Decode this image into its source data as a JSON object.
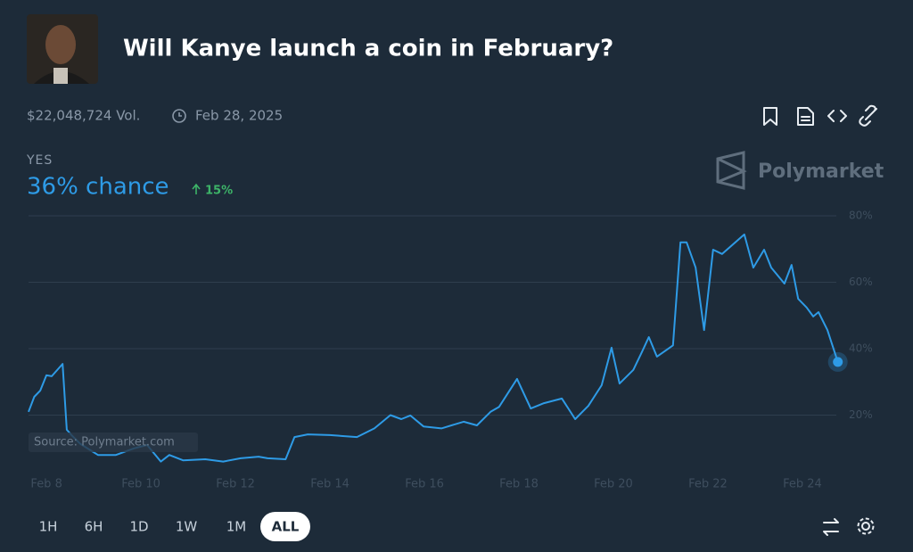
{
  "header": {
    "title": "Will Kanye launch a coin in February?",
    "volume": "$22,048,724 Vol.",
    "end_date": "Feb 28, 2025"
  },
  "outcome": {
    "label": "YES",
    "chance": "36% chance",
    "change": "15%"
  },
  "brand": "Polymarket",
  "source": "Source: Polymarket.com",
  "time_ranges": [
    "1H",
    "6H",
    "1D",
    "1W",
    "1M",
    "ALL"
  ],
  "selected_range": 5,
  "chart_data": {
    "type": "line",
    "color": "#2e9be6",
    "x": [
      7.62,
      7.74,
      7.87,
      8.0,
      8.11,
      8.34,
      8.43,
      8.53,
      8.72,
      9.09,
      9.47,
      9.85,
      10.13,
      10.42,
      10.6,
      10.89,
      11.36,
      11.74,
      12.11,
      12.49,
      12.68,
      13.06,
      13.25,
      13.53,
      14.0,
      14.57,
      14.94,
      15.28,
      15.51,
      15.7,
      15.98,
      16.36,
      16.83,
      17.11,
      17.4,
      17.58,
      17.96,
      18.25,
      18.53,
      18.91,
      19.19,
      19.47,
      19.75,
      19.96,
      20.13,
      20.42,
      20.6,
      20.75,
      20.92,
      21.26,
      21.42,
      21.55,
      21.74,
      21.92,
      22.11,
      22.3,
      22.58,
      22.77,
      22.96,
      23.19,
      23.34,
      23.62,
      23.77,
      23.91,
      24.09,
      24.23,
      24.34,
      24.53,
      24.75
    ],
    "values": [
      21,
      25.5,
      27.4,
      32,
      31.7,
      35.4,
      15.6,
      14,
      11.3,
      8,
      8,
      10,
      11,
      6,
      8,
      6.4,
      6.7,
      6,
      7,
      7.5,
      7,
      6.7,
      13.4,
      14.2,
      14,
      13.4,
      16,
      20,
      18.8,
      19.9,
      16.6,
      16,
      18,
      16.9,
      21,
      22.5,
      30.9,
      22,
      23.6,
      25,
      18.8,
      22.8,
      29,
      40.3,
      29.5,
      33.6,
      38.9,
      43.5,
      37.6,
      41,
      72,
      72,
      64.4,
      45.6,
      69.8,
      68.5,
      72,
      74.4,
      64.4,
      69.8,
      64.4,
      59.6,
      65.2,
      55,
      52.4,
      49.7,
      51,
      45.6,
      36
    ],
    "xlim": [
      7.62,
      24.85
    ],
    "xticks": [
      {
        "value": 8,
        "label": "Feb 8"
      },
      {
        "value": 10,
        "label": "Feb 10"
      },
      {
        "value": 12,
        "label": "Feb 12"
      },
      {
        "value": 14,
        "label": "Feb 14"
      },
      {
        "value": 16,
        "label": "Feb 16"
      },
      {
        "value": 18,
        "label": "Feb 18"
      },
      {
        "value": 20,
        "label": "Feb 20"
      },
      {
        "value": 22,
        "label": "Feb 22"
      },
      {
        "value": 24,
        "label": "Feb 24"
      }
    ],
    "ylim": [
      0,
      80
    ],
    "yticks": [
      {
        "value": 20,
        "label": "20%"
      },
      {
        "value": 40,
        "label": "40%"
      },
      {
        "value": 60,
        "label": "60%"
      },
      {
        "value": 80,
        "label": "80%"
      }
    ],
    "grid": true
  }
}
